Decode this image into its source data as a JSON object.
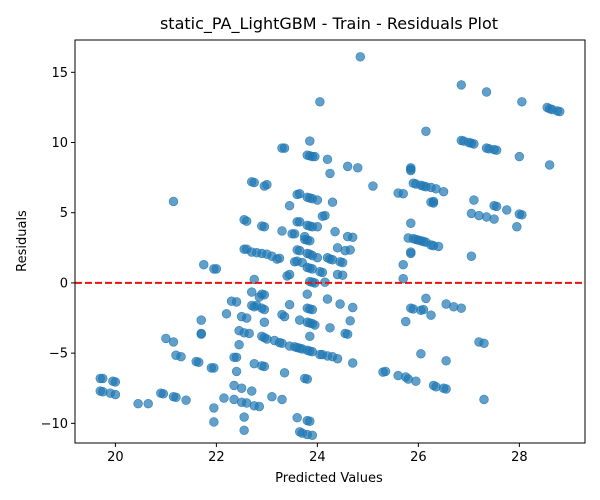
{
  "chart_data": {
    "type": "scatter",
    "title": "static_PA_LightGBM - Train - Residuals Plot",
    "xlabel": "Predicted Values",
    "ylabel": "Residuals",
    "xlim": [
      19.2,
      29.3
    ],
    "ylim": [
      -11.4,
      17.3
    ],
    "xticks": [
      20,
      22,
      24,
      26,
      28
    ],
    "yticks": [
      -10,
      -5,
      0,
      5,
      10,
      15
    ],
    "grid": false,
    "point_color": "#1f77b4",
    "reference_line": {
      "y": 0,
      "color": "#e8110f",
      "style": "dashed"
    },
    "points": [
      [
        19.7,
        -6.8
      ],
      [
        19.75,
        -6.8
      ],
      [
        19.95,
        -7.0
      ],
      [
        20.0,
        -7.05
      ],
      [
        19.7,
        -7.7
      ],
      [
        19.75,
        -7.75
      ],
      [
        19.9,
        -7.85
      ],
      [
        20.0,
        -7.95
      ],
      [
        20.45,
        -8.6
      ],
      [
        20.65,
        -8.6
      ],
      [
        20.9,
        -7.85
      ],
      [
        20.95,
        -7.9
      ],
      [
        21.0,
        -3.95
      ],
      [
        21.15,
        -8.1
      ],
      [
        21.2,
        -8.15
      ],
      [
        21.4,
        -8.35
      ],
      [
        21.15,
        -4.2
      ],
      [
        21.2,
        -5.15
      ],
      [
        21.3,
        -5.25
      ],
      [
        21.15,
        5.8
      ],
      [
        21.6,
        -5.6
      ],
      [
        21.65,
        -5.65
      ],
      [
        21.7,
        -3.6
      ],
      [
        21.7,
        -3.65
      ],
      [
        21.7,
        -2.65
      ],
      [
        21.75,
        1.3
      ],
      [
        21.95,
        1.0
      ],
      [
        22.0,
        1.0
      ],
      [
        21.9,
        -6.05
      ],
      [
        21.95,
        -6.05
      ],
      [
        21.95,
        -8.9
      ],
      [
        21.95,
        -9.9
      ],
      [
        22.15,
        -8.2
      ],
      [
        22.2,
        -2.2
      ],
      [
        22.3,
        -1.3
      ],
      [
        22.35,
        -5.3
      ],
      [
        22.4,
        -5.3
      ],
      [
        22.4,
        -6.3
      ],
      [
        22.35,
        -7.3
      ],
      [
        22.5,
        -7.5
      ],
      [
        22.35,
        -8.3
      ],
      [
        22.5,
        -8.5
      ],
      [
        22.6,
        -8.55
      ],
      [
        22.55,
        -9.55
      ],
      [
        22.55,
        -10.5
      ],
      [
        22.45,
        -3.4
      ],
      [
        22.45,
        -4.4
      ],
      [
        22.4,
        -1.35
      ],
      [
        22.5,
        -2.4
      ],
      [
        22.6,
        -2.5
      ],
      [
        22.55,
        -3.55
      ],
      [
        22.65,
        -3.6
      ],
      [
        22.55,
        2.4
      ],
      [
        22.6,
        2.4
      ],
      [
        22.55,
        4.5
      ],
      [
        22.6,
        4.4
      ],
      [
        22.7,
        -1.6
      ],
      [
        22.75,
        -1.7
      ],
      [
        22.8,
        -1.6
      ],
      [
        22.7,
        -0.65
      ],
      [
        22.75,
        0.25
      ],
      [
        22.7,
        2.2
      ],
      [
        22.8,
        2.15
      ],
      [
        22.9,
        2.1
      ],
      [
        22.7,
        7.2
      ],
      [
        22.75,
        7.15
      ],
      [
        22.9,
        -0.8
      ],
      [
        22.95,
        -0.85
      ],
      [
        22.85,
        -1.0
      ],
      [
        22.9,
        -1.8
      ],
      [
        22.95,
        -1.9
      ],
      [
        22.95,
        -2.8
      ],
      [
        22.9,
        -3.8
      ],
      [
        22.95,
        -3.9
      ],
      [
        23.0,
        -4.0
      ],
      [
        22.95,
        -5.95
      ],
      [
        22.75,
        -5.75
      ],
      [
        22.7,
        -7.7
      ],
      [
        22.75,
        -8.75
      ],
      [
        22.85,
        -8.8
      ],
      [
        22.9,
        4.05
      ],
      [
        22.95,
        4.0
      ],
      [
        22.95,
        6.9
      ],
      [
        23.0,
        7.0
      ],
      [
        23.0,
        2.05
      ],
      [
        23.1,
        1.9
      ],
      [
        23.15,
        -4.1
      ],
      [
        23.25,
        -4.25
      ],
      [
        23.3,
        -4.3
      ],
      [
        23.1,
        -8.1
      ],
      [
        23.3,
        -8.3
      ],
      [
        23.2,
        1.7
      ],
      [
        23.25,
        1.75
      ],
      [
        23.3,
        -2.25
      ],
      [
        23.3,
        3.7
      ],
      [
        23.35,
        -2.4
      ],
      [
        23.35,
        -6.4
      ],
      [
        23.4,
        0.5
      ],
      [
        23.45,
        0.6
      ],
      [
        23.45,
        -1.55
      ],
      [
        23.45,
        -4.5
      ],
      [
        23.55,
        -4.55
      ],
      [
        23.6,
        -4.6
      ],
      [
        23.65,
        -4.65
      ],
      [
        23.55,
        1.5
      ],
      [
        23.6,
        1.55
      ],
      [
        23.7,
        1.45
      ],
      [
        23.5,
        3.5
      ],
      [
        23.55,
        3.5
      ],
      [
        23.6,
        4.35
      ],
      [
        23.65,
        4.35
      ],
      [
        23.6,
        2.35
      ],
      [
        23.65,
        2.3
      ],
      [
        23.6,
        6.3
      ],
      [
        23.65,
        6.35
      ],
      [
        23.3,
        9.6
      ],
      [
        23.35,
        9.6
      ],
      [
        23.45,
        5.5
      ],
      [
        23.65,
        -2.65
      ],
      [
        23.7,
        -4.7
      ],
      [
        23.6,
        -9.6
      ],
      [
        23.65,
        -10.6
      ],
      [
        23.7,
        -10.7
      ],
      [
        23.8,
        -9.8
      ],
      [
        23.85,
        -9.85
      ],
      [
        23.8,
        -10.8
      ],
      [
        23.9,
        -10.85
      ],
      [
        23.75,
        -6.8
      ],
      [
        23.8,
        -6.85
      ],
      [
        23.8,
        -4.8
      ],
      [
        23.85,
        -4.85
      ],
      [
        23.9,
        -4.9
      ],
      [
        23.85,
        -3.8
      ],
      [
        23.8,
        -2.8
      ],
      [
        23.85,
        -2.85
      ],
      [
        23.9,
        -2.9
      ],
      [
        23.95,
        -3.0
      ],
      [
        23.8,
        -1.8
      ],
      [
        23.85,
        -1.85
      ],
      [
        23.9,
        -1.9
      ],
      [
        23.8,
        -0.8
      ],
      [
        23.85,
        0.1
      ],
      [
        23.9,
        0.05
      ],
      [
        23.95,
        0.0
      ],
      [
        23.8,
        1.1
      ],
      [
        23.85,
        1.05
      ],
      [
        23.9,
        1.0
      ],
      [
        23.8,
        2.1
      ],
      [
        23.85,
        2.05
      ],
      [
        23.9,
        1.95
      ],
      [
        23.75,
        3.1
      ],
      [
        23.8,
        3.05
      ],
      [
        23.85,
        3.0
      ],
      [
        23.8,
        4.1
      ],
      [
        23.85,
        4.05
      ],
      [
        23.9,
        4.0
      ],
      [
        24.0,
        4.0
      ],
      [
        23.8,
        6.1
      ],
      [
        23.85,
        6.05
      ],
      [
        23.9,
        6.0
      ],
      [
        24.0,
        5.9
      ],
      [
        23.8,
        9.1
      ],
      [
        23.85,
        9.05
      ],
      [
        23.9,
        9.0
      ],
      [
        23.85,
        10.1
      ],
      [
        23.95,
        9.0
      ],
      [
        23.75,
        3.3
      ],
      [
        24.0,
        1.8
      ],
      [
        24.05,
        0.8
      ],
      [
        24.1,
        0.75
      ],
      [
        24.15,
        0.05
      ],
      [
        24.2,
        -1.15
      ],
      [
        24.25,
        -3.2
      ],
      [
        24.1,
        -5.1
      ],
      [
        24.2,
        -5.2
      ],
      [
        24.3,
        -5.25
      ],
      [
        24.4,
        -5.4
      ],
      [
        24.05,
        12.9
      ],
      [
        24.1,
        4.75
      ],
      [
        24.15,
        4.8
      ],
      [
        24.2,
        1.8
      ],
      [
        24.25,
        1.7
      ],
      [
        24.3,
        1.65
      ],
      [
        24.2,
        8.8
      ],
      [
        24.25,
        7.8
      ],
      [
        24.3,
        5.75
      ],
      [
        24.35,
        3.65
      ],
      [
        24.4,
        0.6
      ],
      [
        24.5,
        0.55
      ],
      [
        24.4,
        2.5
      ],
      [
        24.45,
        1.5
      ],
      [
        24.5,
        1.45
      ],
      [
        24.45,
        -1.5
      ],
      [
        24.55,
        -3.6
      ],
      [
        24.6,
        -3.65
      ],
      [
        24.55,
        2.3
      ],
      [
        24.65,
        2.35
      ],
      [
        24.6,
        3.3
      ],
      [
        24.7,
        3.25
      ],
      [
        24.65,
        -2.7
      ],
      [
        24.7,
        -1.75
      ],
      [
        24.7,
        -5.7
      ],
      [
        24.6,
        8.3
      ],
      [
        24.8,
        8.2
      ],
      [
        24.85,
        16.1
      ],
      [
        25.1,
        6.9
      ],
      [
        25.3,
        -6.35
      ],
      [
        25.35,
        -6.3
      ],
      [
        25.6,
        6.4
      ],
      [
        25.7,
        6.35
      ],
      [
        25.6,
        -6.6
      ],
      [
        25.75,
        -6.7
      ],
      [
        25.7,
        1.3
      ],
      [
        25.7,
        0.3
      ],
      [
        25.75,
        -2.75
      ],
      [
        25.85,
        -1.8
      ],
      [
        25.9,
        -1.85
      ],
      [
        25.8,
        -6.85
      ],
      [
        25.95,
        -7.0
      ],
      [
        25.85,
        2.2
      ],
      [
        25.85,
        2.1
      ],
      [
        25.8,
        3.2
      ],
      [
        25.85,
        8.2
      ],
      [
        25.85,
        8.1
      ],
      [
        25.85,
        8.0
      ],
      [
        25.9,
        7.1
      ],
      [
        25.95,
        7.05
      ],
      [
        25.85,
        4.25
      ],
      [
        25.9,
        3.15
      ],
      [
        25.95,
        3.1
      ],
      [
        26.0,
        3.05
      ],
      [
        26.05,
        3.0
      ],
      [
        26.1,
        2.95
      ],
      [
        26.15,
        2.9
      ],
      [
        26.05,
        -1.95
      ],
      [
        26.1,
        -1.9
      ],
      [
        26.05,
        -5.05
      ],
      [
        26.15,
        -1.1
      ],
      [
        26.15,
        10.8
      ],
      [
        26.05,
        6.95
      ],
      [
        26.1,
        6.9
      ],
      [
        26.15,
        6.85
      ],
      [
        26.25,
        6.8
      ],
      [
        26.3,
        5.8
      ],
      [
        26.25,
        5.75
      ],
      [
        26.3,
        5.7
      ],
      [
        26.25,
        2.7
      ],
      [
        26.3,
        2.65
      ],
      [
        26.25,
        -2.3
      ],
      [
        26.3,
        -7.3
      ],
      [
        26.35,
        -7.4
      ],
      [
        26.5,
        -7.5
      ],
      [
        26.55,
        -7.55
      ],
      [
        26.4,
        2.6
      ],
      [
        26.35,
        6.7
      ],
      [
        26.5,
        6.5
      ],
      [
        26.55,
        -1.5
      ],
      [
        26.55,
        -5.55
      ],
      [
        26.7,
        -1.7
      ],
      [
        26.85,
        -1.8
      ],
      [
        26.85,
        14.1
      ],
      [
        26.85,
        10.15
      ],
      [
        26.9,
        10.1
      ],
      [
        27.0,
        10.0
      ],
      [
        27.05,
        9.95
      ],
      [
        27.1,
        9.9
      ],
      [
        27.05,
        4.95
      ],
      [
        27.05,
        1.9
      ],
      [
        27.1,
        5.9
      ],
      [
        27.2,
        4.8
      ],
      [
        27.35,
        4.7
      ],
      [
        27.5,
        4.55
      ],
      [
        27.2,
        -4.2
      ],
      [
        27.3,
        -4.3
      ],
      [
        27.3,
        -8.3
      ],
      [
        27.35,
        13.6
      ],
      [
        27.35,
        9.6
      ],
      [
        27.4,
        9.55
      ],
      [
        27.5,
        9.5
      ],
      [
        27.55,
        9.45
      ],
      [
        27.5,
        5.5
      ],
      [
        27.55,
        5.45
      ],
      [
        27.75,
        5.2
      ],
      [
        27.95,
        4.0
      ],
      [
        28.0,
        4.9
      ],
      [
        28.05,
        4.85
      ],
      [
        28.0,
        9.0
      ],
      [
        28.05,
        12.9
      ],
      [
        28.55,
        12.5
      ],
      [
        28.6,
        12.4
      ],
      [
        28.65,
        12.35
      ],
      [
        28.75,
        12.25
      ],
      [
        28.8,
        12.2
      ],
      [
        28.6,
        8.4
      ],
      [
        24.05,
        -5.1
      ],
      [
        22.9,
        -5.9
      ]
    ]
  }
}
